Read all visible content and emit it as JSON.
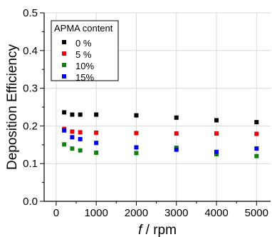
{
  "chart_data": {
    "type": "scatter",
    "xlabel_italic": "f",
    "xlabel_rest": " / rpm",
    "ylabel": "Deposition Efficiency",
    "xlim": [
      -300,
      5350
    ],
    "ylim": [
      0,
      0.5
    ],
    "x_ticks": [
      0,
      1000,
      2000,
      3000,
      4000,
      5000
    ],
    "x_tick_labels": [
      "0",
      "1000",
      "2000",
      "3000",
      "4000",
      "5000"
    ],
    "y_ticks": [
      0.0,
      0.1,
      0.2,
      0.3,
      0.4,
      0.5
    ],
    "y_tick_labels": [
      "0.0",
      "0.1",
      "0.2",
      "0.3",
      "0.4",
      "0.5"
    ],
    "grid": true,
    "marker": "square",
    "legend": {
      "title": "APMA content",
      "placement": "top-left"
    },
    "series": [
      {
        "name": "0 %",
        "color": "#000000",
        "x": [
          200,
          400,
          600,
          1000,
          2000,
          3000,
          4000,
          5000
        ],
        "y": [
          0.236,
          0.23,
          0.23,
          0.23,
          0.228,
          0.222,
          0.215,
          0.21
        ]
      },
      {
        "name": "5 %",
        "color": "#e8000b",
        "x": [
          200,
          400,
          600,
          1000,
          2000,
          3000,
          4000,
          5000
        ],
        "y": [
          0.192,
          0.185,
          0.183,
          0.182,
          0.181,
          0.18,
          0.18,
          0.179
        ]
      },
      {
        "name": "10%",
        "color": "#108010",
        "x": [
          200,
          400,
          600,
          1000,
          2000,
          3000,
          4000,
          5000
        ],
        "y": [
          0.151,
          0.14,
          0.135,
          0.129,
          0.128,
          0.142,
          0.125,
          0.12
        ]
      },
      {
        "name": "15%",
        "color": "#0000ee",
        "x": [
          200,
          400,
          600,
          1000,
          2000,
          3000,
          4000,
          5000
        ],
        "y": [
          0.188,
          0.17,
          0.165,
          0.155,
          0.143,
          0.137,
          0.131,
          0.14
        ]
      }
    ]
  }
}
